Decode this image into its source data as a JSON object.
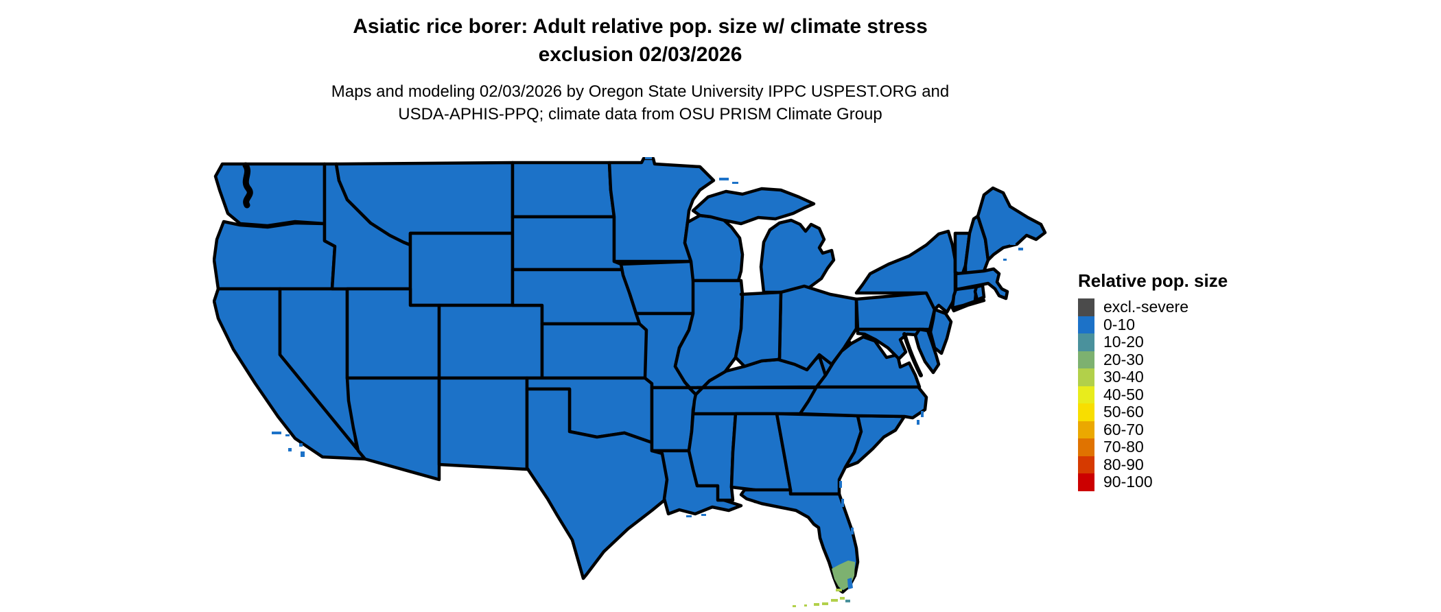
{
  "title": {
    "line1": "Asiatic rice borer: Adult relative pop. size w/ climate stress",
    "line2": "exclusion 02/03/2026"
  },
  "subtitle": {
    "line1": "Maps and modeling 02/03/2026 by Oregon State University IPPC USPEST.ORG and",
    "line2": "USDA-APHIS-PPQ; climate data from OSU PRISM Climate Group"
  },
  "legend": {
    "title": "Relative pop. size",
    "items": [
      {
        "label": "excl.-severe",
        "color": "#4B4B4B"
      },
      {
        "label": "0-10",
        "color": "#1C72C8"
      },
      {
        "label": "10-20",
        "color": "#4A919C"
      },
      {
        "label": "20-30",
        "color": "#7DB170"
      },
      {
        "label": "30-40",
        "color": "#B2D04A"
      },
      {
        "label": "40-50",
        "color": "#E8EC1C"
      },
      {
        "label": "50-60",
        "color": "#F8DE00"
      },
      {
        "label": "60-70",
        "color": "#EBA800"
      },
      {
        "label": "70-80",
        "color": "#E07300"
      },
      {
        "label": "80-90",
        "color": "#D63A00"
      },
      {
        "label": "90-100",
        "color": "#CC0000"
      }
    ]
  },
  "map": {
    "fill": "#1C72C8",
    "border": "#000000",
    "background": "#FFFFFF",
    "overlays": {
      "florida_tip": "#7DB170",
      "florida_keys": "#B2D04A",
      "florida_keys_teal": "#4A919C",
      "florida_inner_blue": "#1C72C8"
    }
  }
}
